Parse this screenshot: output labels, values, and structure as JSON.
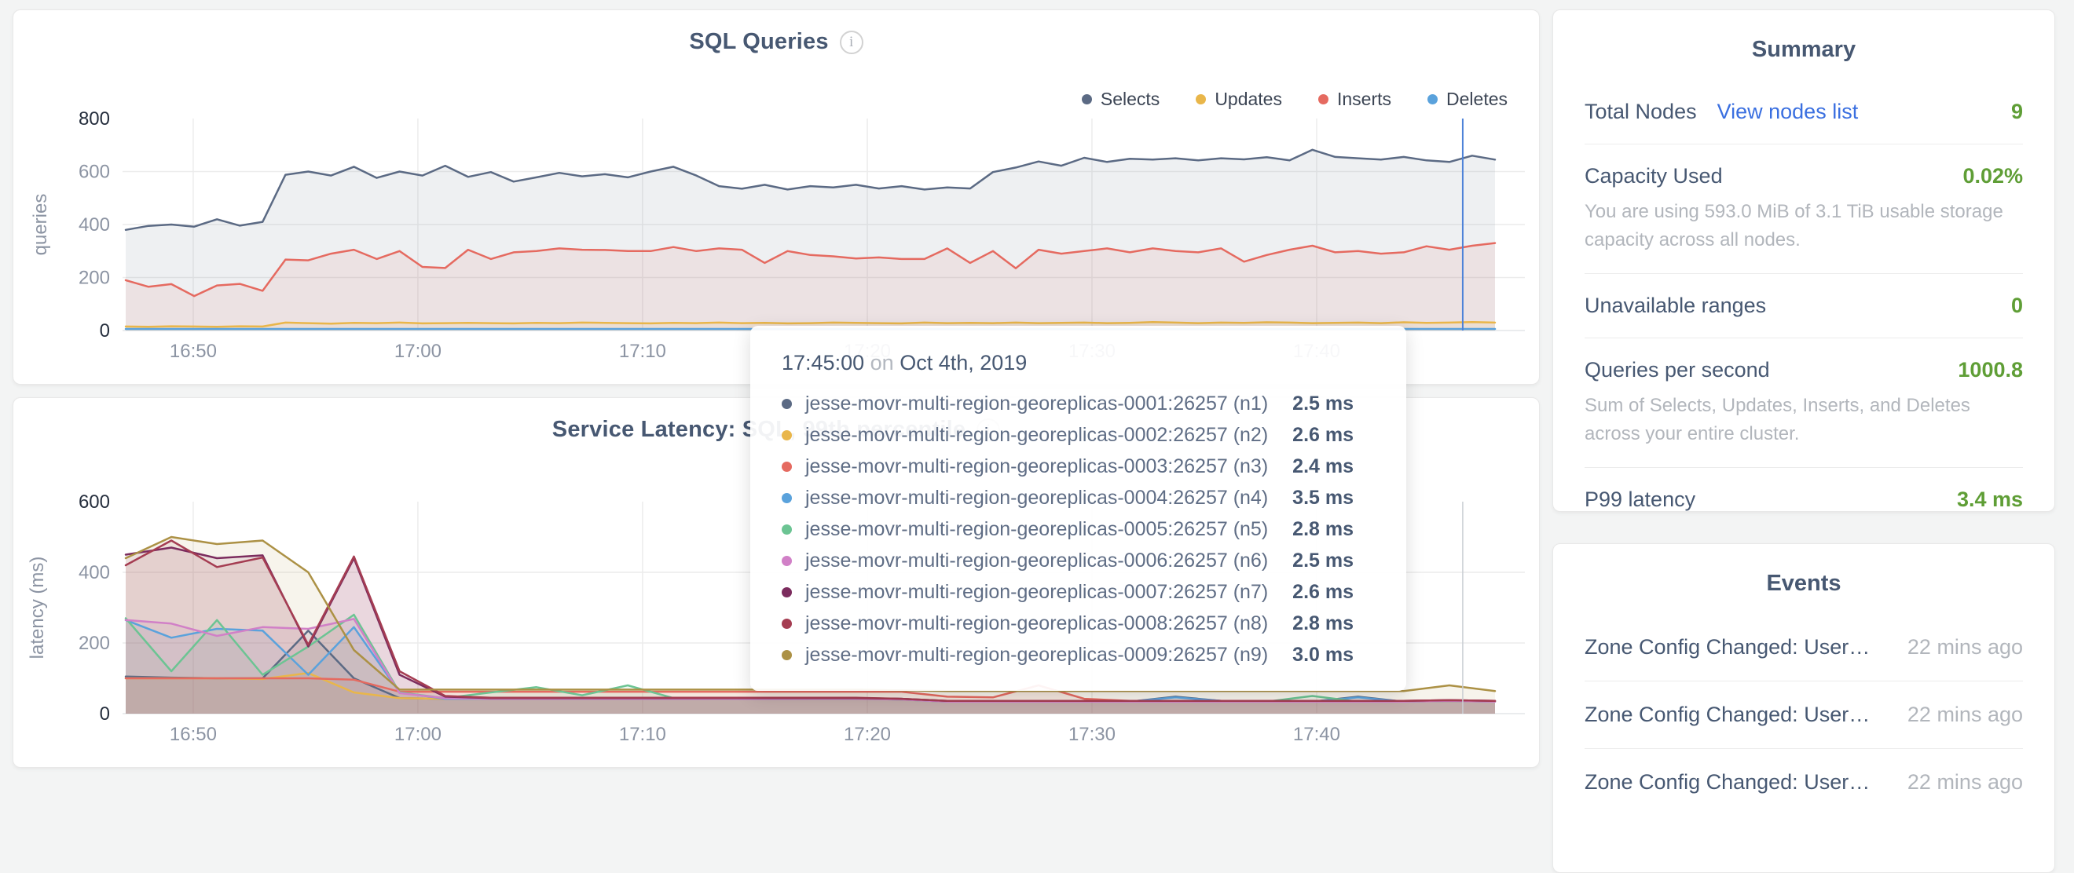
{
  "sql_chart": {
    "title": "SQL Queries",
    "info_icon": "i",
    "legend": [
      {
        "label": "Selects",
        "color": "#5b6a84"
      },
      {
        "label": "Updates",
        "color": "#e9b64a"
      },
      {
        "label": "Inserts",
        "color": "#e56a60"
      },
      {
        "label": "Deletes",
        "color": "#5aa2dc"
      }
    ]
  },
  "latency_chart": {
    "title": "Service Latency: SQL, 99th percentile",
    "info_icon": "i"
  },
  "tooltip": {
    "time": "17:45:00",
    "connector": "on",
    "date": "Oct 4th, 2019",
    "rows": [
      {
        "color": "#5b6a84",
        "name": "jesse-movr-multi-region-georeplicas-0001:26257 (n1)",
        "value": "2.5 ms"
      },
      {
        "color": "#e9b64a",
        "name": "jesse-movr-multi-region-georeplicas-0002:26257 (n2)",
        "value": "2.6 ms"
      },
      {
        "color": "#e56a60",
        "name": "jesse-movr-multi-region-georeplicas-0003:26257 (n3)",
        "value": "2.4 ms"
      },
      {
        "color": "#5aa2dc",
        "name": "jesse-movr-multi-region-georeplicas-0004:26257 (n4)",
        "value": "3.5 ms"
      },
      {
        "color": "#6cc493",
        "name": "jesse-movr-multi-region-georeplicas-0005:26257 (n5)",
        "value": "2.8 ms"
      },
      {
        "color": "#d180c7",
        "name": "jesse-movr-multi-region-georeplicas-0006:26257 (n6)",
        "value": "2.5 ms"
      },
      {
        "color": "#7c2c5e",
        "name": "jesse-movr-multi-region-georeplicas-0007:26257 (n7)",
        "value": "2.6 ms"
      },
      {
        "color": "#a53d52",
        "name": "jesse-movr-multi-region-georeplicas-0008:26257 (n8)",
        "value": "2.8 ms"
      },
      {
        "color": "#ac9145",
        "name": "jesse-movr-multi-region-georeplicas-0009:26257 (n9)",
        "value": "3.0 ms"
      }
    ]
  },
  "summary": {
    "title": "Summary",
    "total_nodes": {
      "label": "Total Nodes",
      "link": "View nodes list",
      "value": "9"
    },
    "capacity_used": {
      "label": "Capacity Used",
      "value": "0.02%",
      "description": "You are using 593.0 MiB of 3.1 TiB usable storage capacity across all nodes."
    },
    "unavailable_ranges": {
      "label": "Unavailable ranges",
      "value": "0"
    },
    "queries_per_second": {
      "label": "Queries per second",
      "value": "1000.8",
      "description": "Sum of Selects, Updates, Inserts, and Deletes across your entire cluster."
    },
    "p99_latency": {
      "label": "P99 latency",
      "value": "3.4 ms"
    }
  },
  "events": {
    "title": "Events",
    "items": [
      {
        "label": "Zone Config Changed: User…",
        "time": "22 mins ago"
      },
      {
        "label": "Zone Config Changed: User…",
        "time": "22 mins ago"
      },
      {
        "label": "Zone Config Changed: User…",
        "time": "22 mins ago"
      }
    ]
  },
  "colors": {
    "accent_green": "#5f9e36",
    "link_blue": "#3a6fe0",
    "slate_text": "#475872",
    "muted_text": "#b2b6bc",
    "tick_gray": "#8c94a3",
    "tick_dark": "#252e3d",
    "crosshair_blue": "#4d82d8",
    "crosshair_gray": "#c9cdd3"
  },
  "chart_data": [
    {
      "type": "area",
      "title": "SQL Queries",
      "ylabel": "queries",
      "ylim": [
        0,
        800
      ],
      "yticks": [
        800,
        600,
        400,
        200,
        0
      ],
      "grid": true,
      "legend_position": "top-right",
      "xticks": [
        {
          "label": "16:50",
          "f": 0.0504
        },
        {
          "label": "17:00",
          "f": 0.2106
        },
        {
          "label": "17:10",
          "f": 0.3708
        },
        {
          "label": "17:20",
          "f": 0.5311
        },
        {
          "label": "17:30",
          "f": 0.6913
        },
        {
          "label": "17:40",
          "f": 0.8515
        }
      ],
      "crosshair": {
        "f": 0.9557,
        "time": "17:45:00"
      },
      "series": [
        {
          "name": "Selects",
          "color": "#5b6a84",
          "values": [
            380,
            395,
            400,
            392,
            420,
            396,
            410,
            588,
            600,
            585,
            618,
            576,
            600,
            585,
            622,
            580,
            598,
            562,
            578,
            595,
            582,
            590,
            578,
            600,
            618,
            585,
            545,
            535,
            550,
            532,
            545,
            540,
            550,
            536,
            545,
            532,
            540,
            536,
            598,
            615,
            638,
            622,
            652,
            636,
            648,
            645,
            650,
            642,
            650,
            646,
            654,
            642,
            682,
            655,
            650,
            645,
            655,
            642,
            636,
            660,
            645
          ]
        },
        {
          "name": "Inserts",
          "color": "#e56a60",
          "values": [
            190,
            165,
            175,
            130,
            170,
            176,
            150,
            268,
            265,
            290,
            305,
            270,
            300,
            240,
            236,
            305,
            270,
            295,
            300,
            310,
            305,
            304,
            300,
            300,
            315,
            300,
            310,
            305,
            255,
            300,
            285,
            280,
            272,
            276,
            270,
            270,
            310,
            255,
            300,
            235,
            305,
            290,
            300,
            310,
            295,
            310,
            300,
            295,
            310,
            260,
            285,
            305,
            320,
            295,
            300,
            290,
            295,
            318,
            305,
            320,
            330
          ]
        },
        {
          "name": "Updates",
          "color": "#e9b64a",
          "values": [
            15,
            14,
            16,
            15,
            14,
            16,
            15,
            30,
            28,
            26,
            29,
            28,
            30,
            27,
            28,
            29,
            28,
            27,
            29,
            28,
            30,
            29,
            28,
            27,
            29,
            28,
            30,
            28,
            29,
            27,
            28,
            30,
            29,
            28,
            27,
            30,
            28,
            29,
            28,
            30,
            28,
            29,
            30,
            28,
            29,
            32,
            30,
            28,
            30,
            29,
            31,
            30,
            28,
            29,
            30,
            28,
            31,
            29,
            30,
            32,
            30
          ]
        },
        {
          "name": "Deletes",
          "color": "#5aa2dc",
          "values": [
            6,
            6,
            6,
            6,
            6,
            6,
            6,
            6,
            6,
            6,
            6,
            6,
            6,
            6,
            6,
            6,
            6,
            6,
            6,
            6,
            6,
            6,
            6,
            6,
            6,
            6,
            6,
            6,
            6,
            6,
            6,
            6,
            6,
            6,
            6,
            6,
            6,
            6,
            6,
            6,
            6,
            6,
            6,
            6,
            6,
            6,
            6,
            6,
            6,
            6,
            6,
            6,
            6,
            6,
            6,
            6,
            6,
            6,
            6,
            6,
            6
          ]
        }
      ]
    },
    {
      "type": "area",
      "title": "Service Latency: SQL, 99th percentile",
      "ylabel": "latency (ms)",
      "ylim": [
        0,
        600
      ],
      "yticks": [
        600,
        400,
        200,
        0
      ],
      "grid": true,
      "xticks": [
        {
          "label": "16:50",
          "f": 0.0504
        },
        {
          "label": "17:00",
          "f": 0.2106
        },
        {
          "label": "17:10",
          "f": 0.3708
        },
        {
          "label": "17:20",
          "f": 0.5311
        },
        {
          "label": "17:30",
          "f": 0.6913
        },
        {
          "label": "17:40",
          "f": 0.8515
        }
      ],
      "crosshair": {
        "f": 0.9557,
        "time": "17:45:00"
      },
      "series": [
        {
          "name": "n1",
          "color": "#5b6a84",
          "values": [
            105,
            102,
            100,
            100,
            235,
            100,
            44,
            42,
            42,
            42,
            42,
            42,
            42,
            42,
            42,
            42,
            42,
            42,
            34,
            34,
            34,
            36,
            34,
            48,
            36,
            34,
            34,
            48,
            34,
            36,
            34
          ]
        },
        {
          "name": "n2",
          "color": "#e9b64a",
          "values": [
            100,
            100,
            100,
            98,
            115,
            60,
            44,
            42,
            42,
            42,
            42,
            42,
            42,
            42,
            42,
            42,
            42,
            40,
            34,
            34,
            34,
            34,
            34,
            34,
            34,
            34,
            34,
            34,
            34,
            36,
            34
          ]
        },
        {
          "name": "n3",
          "color": "#e56a60",
          "values": [
            100,
            100,
            100,
            100,
            100,
            96,
            62,
            62,
            62,
            62,
            62,
            62,
            62,
            62,
            62,
            62,
            62,
            62,
            48,
            46,
            80,
            42,
            36,
            36,
            36,
            36,
            36,
            36,
            36,
            38,
            36
          ]
        },
        {
          "name": "n4",
          "color": "#5aa2dc",
          "values": [
            265,
            215,
            240,
            235,
            110,
            245,
            60,
            42,
            42,
            42,
            42,
            42,
            42,
            42,
            42,
            42,
            42,
            40,
            34,
            34,
            34,
            34,
            34,
            46,
            36,
            34,
            34,
            46,
            34,
            36,
            34
          ]
        },
        {
          "name": "n5",
          "color": "#6cc493",
          "values": [
            270,
            120,
            265,
            110,
            190,
            280,
            60,
            44,
            60,
            75,
            52,
            80,
            44,
            42,
            44,
            42,
            42,
            40,
            34,
            34,
            34,
            34,
            34,
            34,
            34,
            34,
            50,
            34,
            34,
            36,
            34
          ]
        },
        {
          "name": "n6",
          "color": "#d180c7",
          "values": [
            265,
            255,
            220,
            245,
            240,
            268,
            58,
            44,
            42,
            42,
            42,
            42,
            42,
            42,
            42,
            42,
            42,
            40,
            34,
            34,
            34,
            34,
            34,
            34,
            34,
            34,
            34,
            34,
            34,
            36,
            34
          ]
        },
        {
          "name": "n7",
          "color": "#7c2c5e",
          "values": [
            450,
            470,
            440,
            448,
            190,
            440,
            110,
            48,
            44,
            44,
            44,
            44,
            44,
            44,
            44,
            44,
            44,
            42,
            36,
            36,
            36,
            36,
            36,
            36,
            36,
            36,
            36,
            36,
            36,
            38,
            36
          ]
        },
        {
          "name": "n8",
          "color": "#a53d52",
          "values": [
            420,
            490,
            415,
            442,
            195,
            445,
            120,
            50,
            45,
            45,
            45,
            45,
            45,
            45,
            45,
            45,
            45,
            42,
            36,
            36,
            36,
            36,
            36,
            36,
            36,
            36,
            36,
            36,
            36,
            38,
            36
          ]
        },
        {
          "name": "n9",
          "color": "#ac9145",
          "values": [
            440,
            500,
            480,
            490,
            400,
            180,
            68,
            68,
            68,
            68,
            68,
            68,
            68,
            68,
            68,
            68,
            68,
            66,
            64,
            64,
            64,
            64,
            64,
            64,
            64,
            64,
            64,
            64,
            64,
            80,
            64
          ]
        }
      ]
    }
  ]
}
